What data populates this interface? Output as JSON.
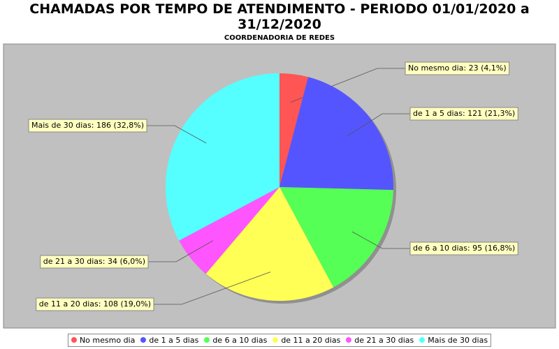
{
  "chart_data": {
    "type": "pie",
    "title": "CHAMADAS POR TEMPO DE ATENDIMENTO - PERIODO 01/01/2020 a 31/12/2020",
    "subtitle": "COORDENADORIA DE REDES",
    "categories": [
      "No mesmo dia",
      "de 1 a 5 dias",
      "de 6 a 10 dias",
      "de 11 a 20 dias",
      "de 21 a 30 dias",
      "Mais de 30 dias"
    ],
    "values": [
      23,
      121,
      95,
      108,
      34,
      186
    ],
    "value_labels": [
      "No mesmo dia: 23 (4,1%)",
      "de 1 a 5 dias: 121 (21,3%)",
      "de 6 a 10 dias: 95 (16,8%)",
      "de 11 a 20 dias: 108 (19,0%)",
      "de 21 a 30 dias: 34 (6,0%)",
      "Mais de 30 dias: 186 (32,8%)"
    ],
    "colors": [
      "#ff5555",
      "#5555ff",
      "#55ff55",
      "#ffff55",
      "#ff55ff",
      "#55ffff"
    ],
    "legend": "bottom"
  }
}
